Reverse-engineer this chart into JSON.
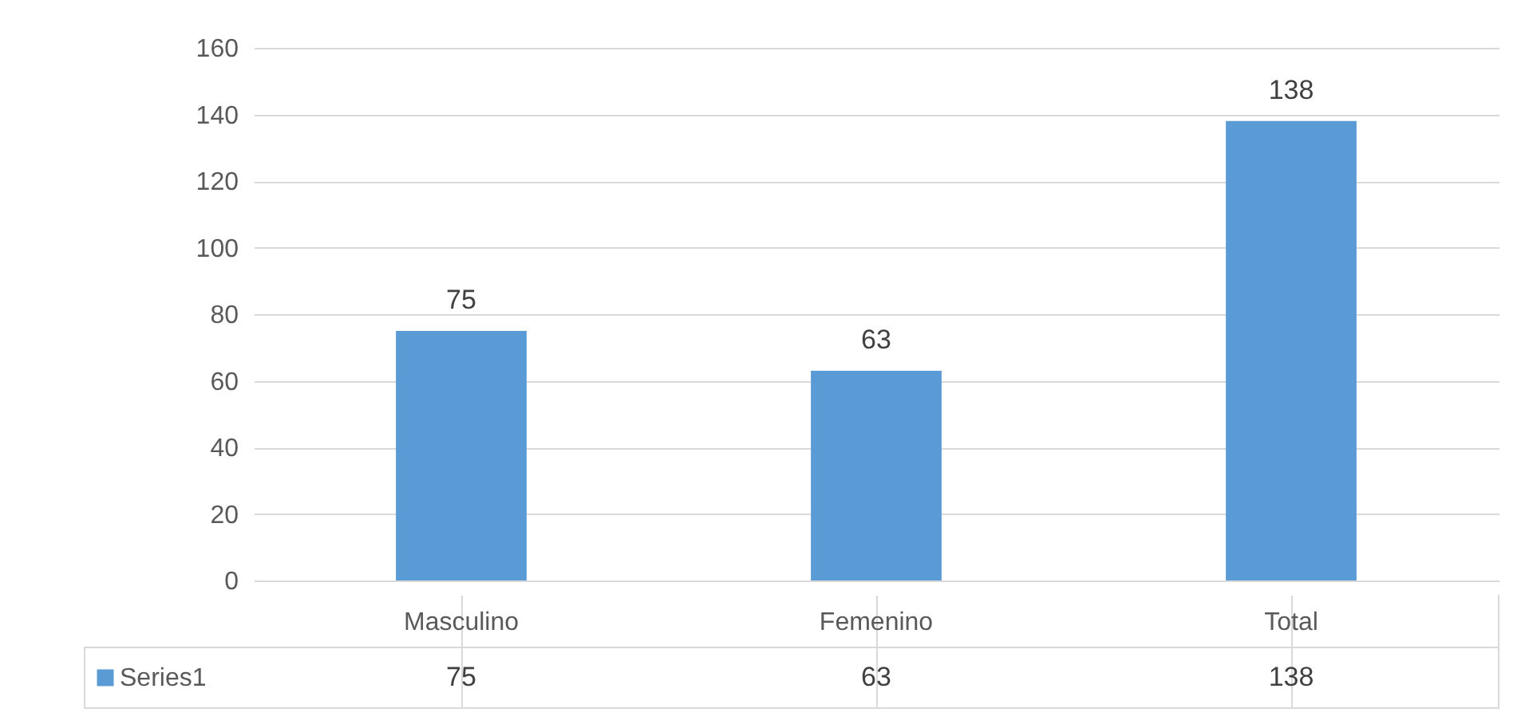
{
  "chart_data": {
    "type": "bar",
    "categories": [
      "Masculino",
      "Femenino",
      "Total"
    ],
    "series": [
      {
        "name": "Series1",
        "color": "#5b9bd5",
        "values": [
          75,
          63,
          138
        ]
      }
    ],
    "ylim": [
      0,
      160
    ],
    "yticks": [
      0,
      20,
      40,
      60,
      80,
      100,
      120,
      140,
      160
    ],
    "grid": "y",
    "data_labels": true,
    "value_labels": [
      "75",
      "63",
      "138"
    ]
  }
}
